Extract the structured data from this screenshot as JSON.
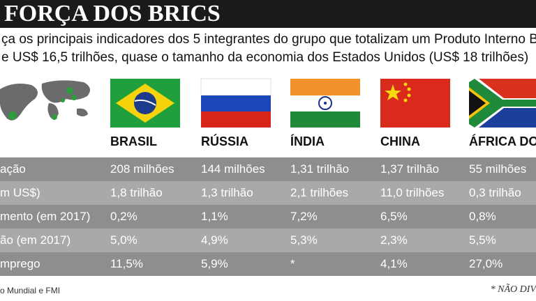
{
  "header": {
    "title": "FORÇA DOS BRICS",
    "subtitle": [
      "ça os principais indicadores dos 5 integrantes do grupo que totalizam um Produto Interno Br",
      "e US$ 16,5 trilhões, quase o tamanho da economia dos Estados Unidos (US$ 18 trilhões)"
    ]
  },
  "table": {
    "columns": [
      "BRASIL",
      "RÚSSIA",
      "ÍNDIA",
      "CHINA",
      "ÁFRICA DO"
    ],
    "rows": [
      {
        "label": "ação",
        "cells": [
          "208 milhões",
          "144 milhões",
          "1,31 trilhão",
          "1,37 trilhão",
          "55 milhões"
        ]
      },
      {
        "label": "m US$)",
        "cells": [
          "1,8 trilhão",
          "1,3 trilhão",
          "2,1 trilhões",
          "11,0 trilhões",
          "0,3 trilhão"
        ]
      },
      {
        "label": "mento (em 2017)",
        "cells": [
          "0,2%",
          "1,1%",
          "7,2%",
          "6,5%",
          "0,8%"
        ]
      },
      {
        "label": "ão (em 2017)",
        "cells": [
          "5,0%",
          "4,9%",
          "5,3%",
          "2,3%",
          "5,5%"
        ]
      },
      {
        "label": "mprego",
        "cells": [
          "11,5%",
          "5,9%",
          "*",
          "4,1%",
          "27,0%"
        ]
      }
    ]
  },
  "footer": {
    "source": "o Mundial e FMI",
    "note": "* NÃO DIV"
  }
}
